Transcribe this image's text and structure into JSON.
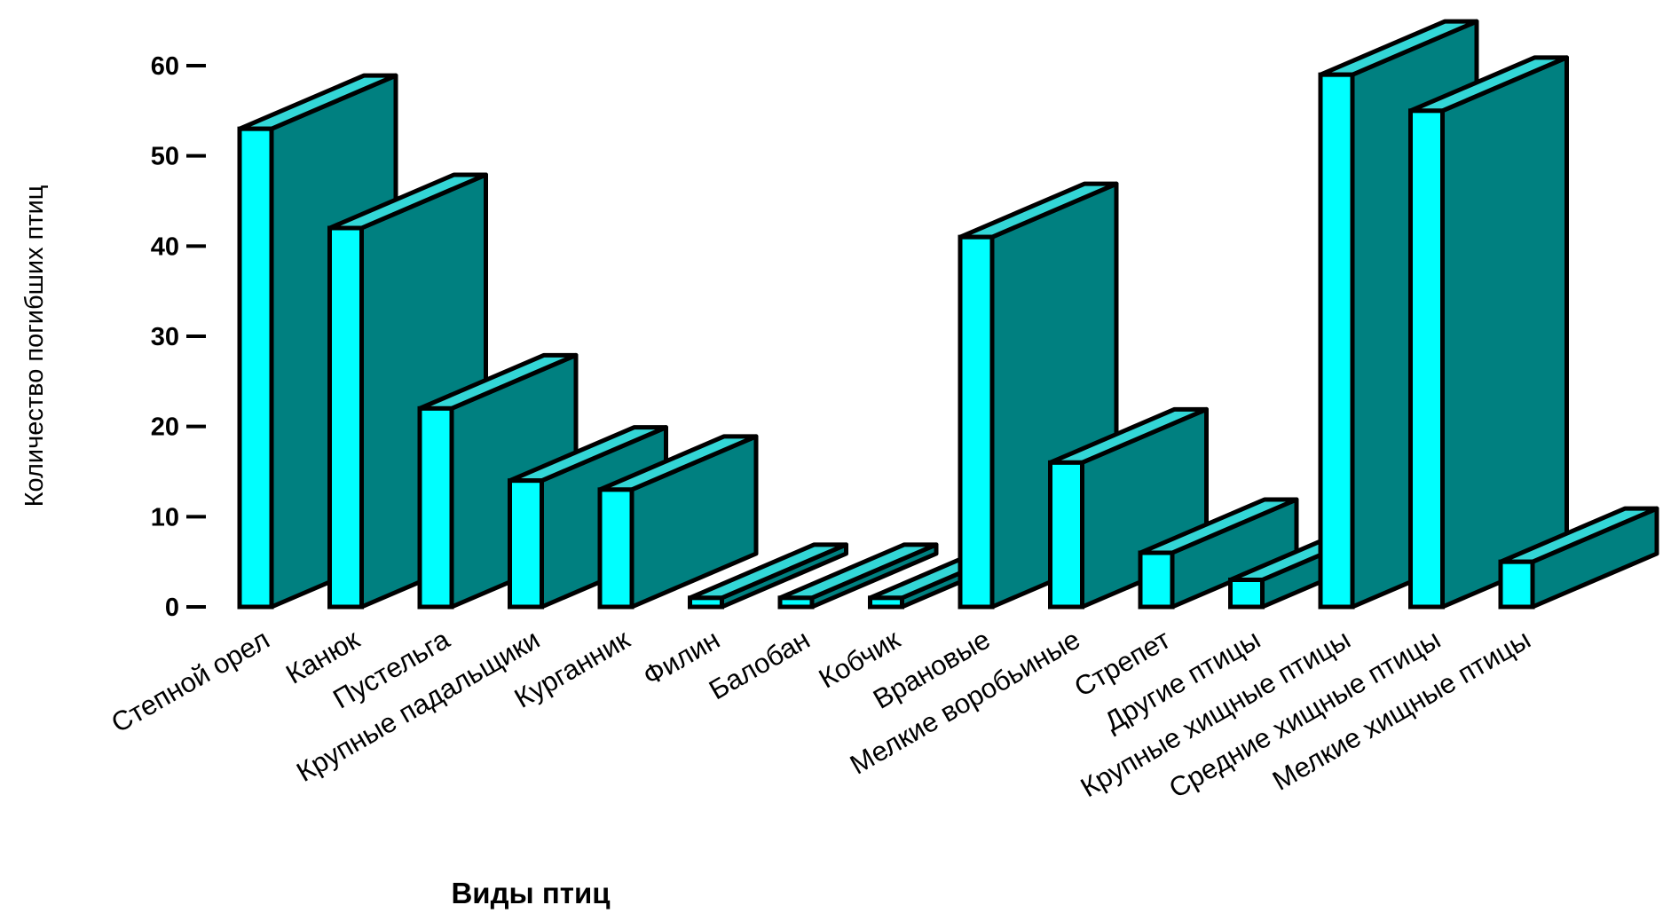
{
  "chart_data": {
    "type": "bar",
    "title": "",
    "xlabel": "Виды птиц",
    "ylabel": "Количество погибших птиц",
    "ylim": [
      0,
      60
    ],
    "yticks": [
      0,
      10,
      20,
      30,
      40,
      50,
      60
    ],
    "grid": false,
    "style": "3d-column",
    "colors": {
      "front": "#00FFFF",
      "side": "#008080",
      "top": "#33D6D6",
      "outline": "#000000"
    },
    "categories": [
      "Степной орел",
      "Канюк",
      "Пустельга",
      "Крупные падальщики",
      "Курганник",
      "Филин",
      "Балобан",
      "Кобчик",
      "Врановые",
      "Мелкие воробьиные",
      "Стрепет",
      "Другие птицы",
      "Крупные хищные птицы",
      "Средние хищные птицы",
      "Мелкие хищные птицы"
    ],
    "values": [
      53,
      42,
      22,
      14,
      13,
      1,
      1,
      1,
      41,
      16,
      6,
      3,
      59,
      55,
      5
    ]
  }
}
